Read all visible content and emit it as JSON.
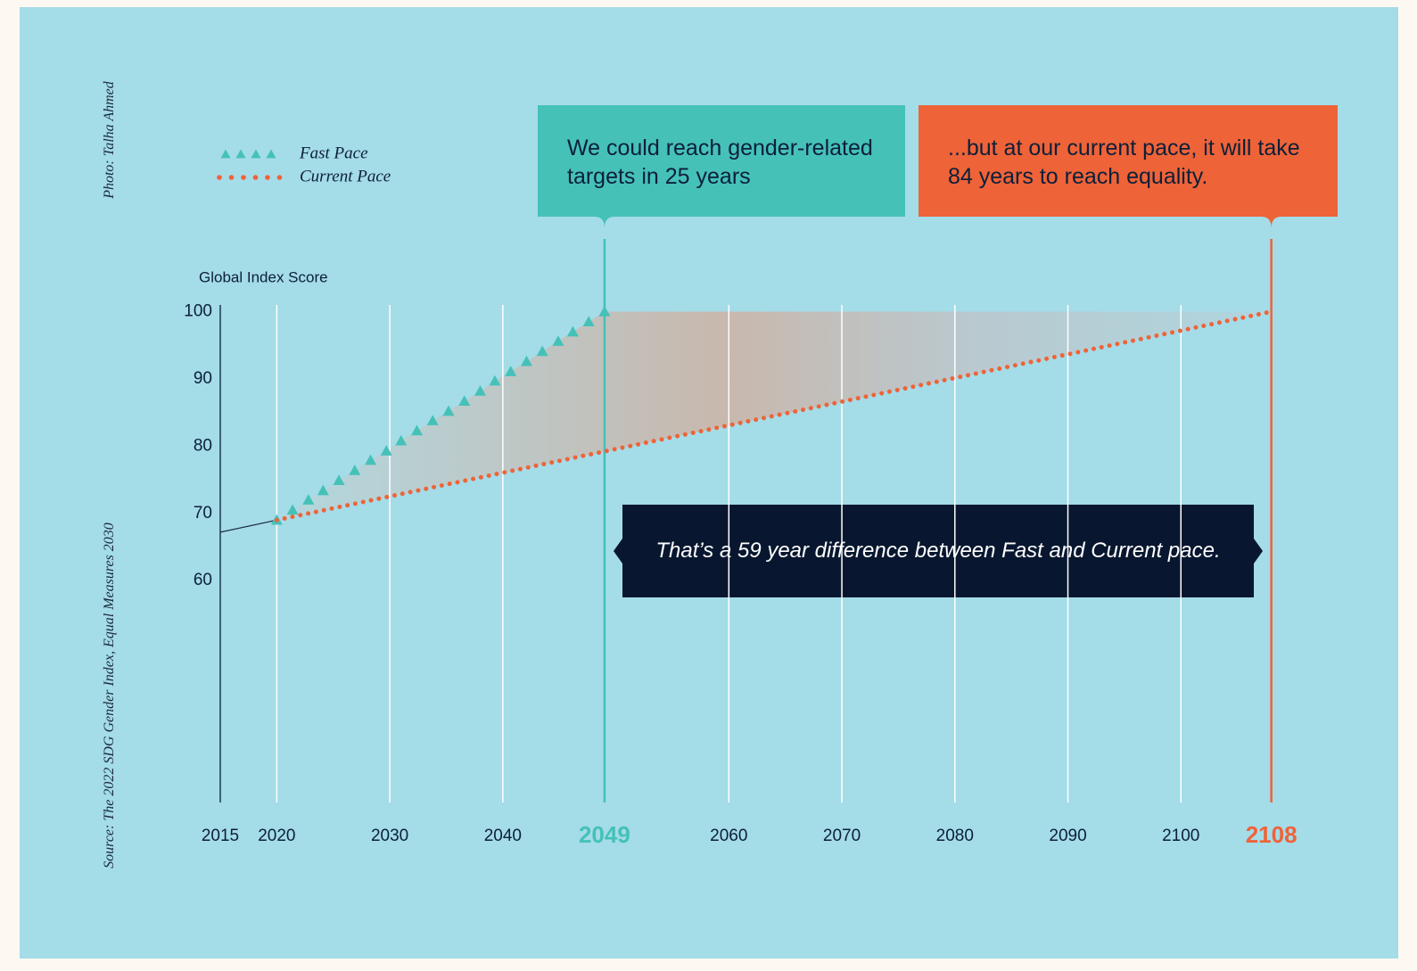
{
  "chart_data": {
    "type": "line",
    "credit": "Photo: Talha Ahmed",
    "source": "Source: The 2022 SDG Gender Index, Equal Measures 2030",
    "y_label": "Global Index Score",
    "xlim": [
      2015,
      2110
    ],
    "ylim": [
      27,
      101
    ],
    "xticks": [
      2015,
      2020,
      2030,
      2040,
      2049,
      2060,
      2070,
      2080,
      2090,
      2100,
      2108
    ],
    "yticks": [
      100,
      90,
      80,
      70,
      60
    ],
    "grid": true,
    "legend": "upper left",
    "series": [
      {
        "name": "Fast Pace",
        "color": "#45c1b8",
        "marker": "triangle",
        "x": [
          2020.0,
          2021.4,
          2022.8,
          2024.1,
          2025.5,
          2026.9,
          2028.3,
          2029.7,
          2031.0,
          2032.4,
          2033.8,
          2035.2,
          2036.6,
          2038.0,
          2039.3,
          2040.7,
          2042.1,
          2043.5,
          2044.9,
          2046.2,
          2047.6,
          2049.0
        ],
        "values": [
          69,
          70.5,
          72,
          73.4,
          74.9,
          76.4,
          77.9,
          79.3,
          80.8,
          82.3,
          83.8,
          85.2,
          86.7,
          88.2,
          89.7,
          91.1,
          92.6,
          94.1,
          95.6,
          97.0,
          98.5,
          100
        ]
      },
      {
        "name": "Current Pace",
        "color": "#ee6338",
        "marker": "dot",
        "x": [
          2020,
          2108
        ],
        "values": [
          69,
          100
        ]
      }
    ],
    "lead_in": {
      "color": "#1b2a3a",
      "x": [
        2015,
        2020
      ],
      "values": [
        67.2,
        69
      ]
    },
    "annotations": [
      {
        "x": 2049,
        "color": "#45c1b8",
        "text": "We could reach gender-related targets in 25 years"
      },
      {
        "x": 2108,
        "color": "#ee6338",
        "text": "...but at our current pace, it will take 84 years to reach equality."
      }
    ],
    "note": "That’s a 59 year difference between Fast and Current pace."
  }
}
